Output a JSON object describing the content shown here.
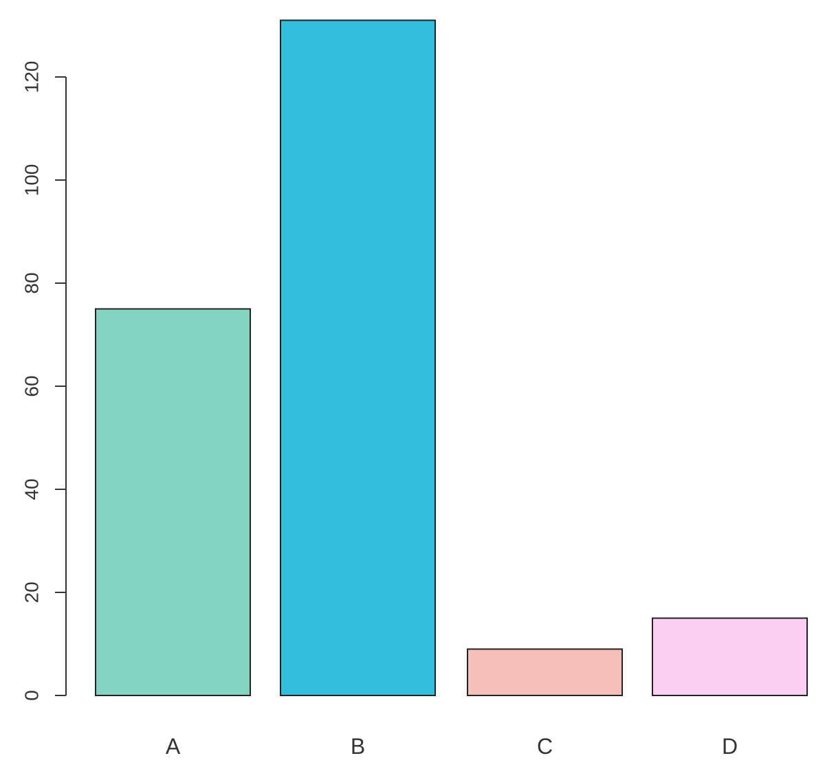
{
  "chart_data": {
    "type": "bar",
    "title": "",
    "xlabel": "",
    "ylabel": "",
    "categories": [
      "A",
      "B",
      "C",
      "D"
    ],
    "values": [
      75,
      131,
      9,
      15
    ],
    "colors": [
      "#83d3c1",
      "#31bfdd",
      "#f6c0ba",
      "#facff1"
    ],
    "ylim": [
      0,
      131
    ],
    "yticks": [
      0,
      20,
      40,
      60,
      80,
      100,
      120
    ],
    "grid": false,
    "legend": "none"
  }
}
